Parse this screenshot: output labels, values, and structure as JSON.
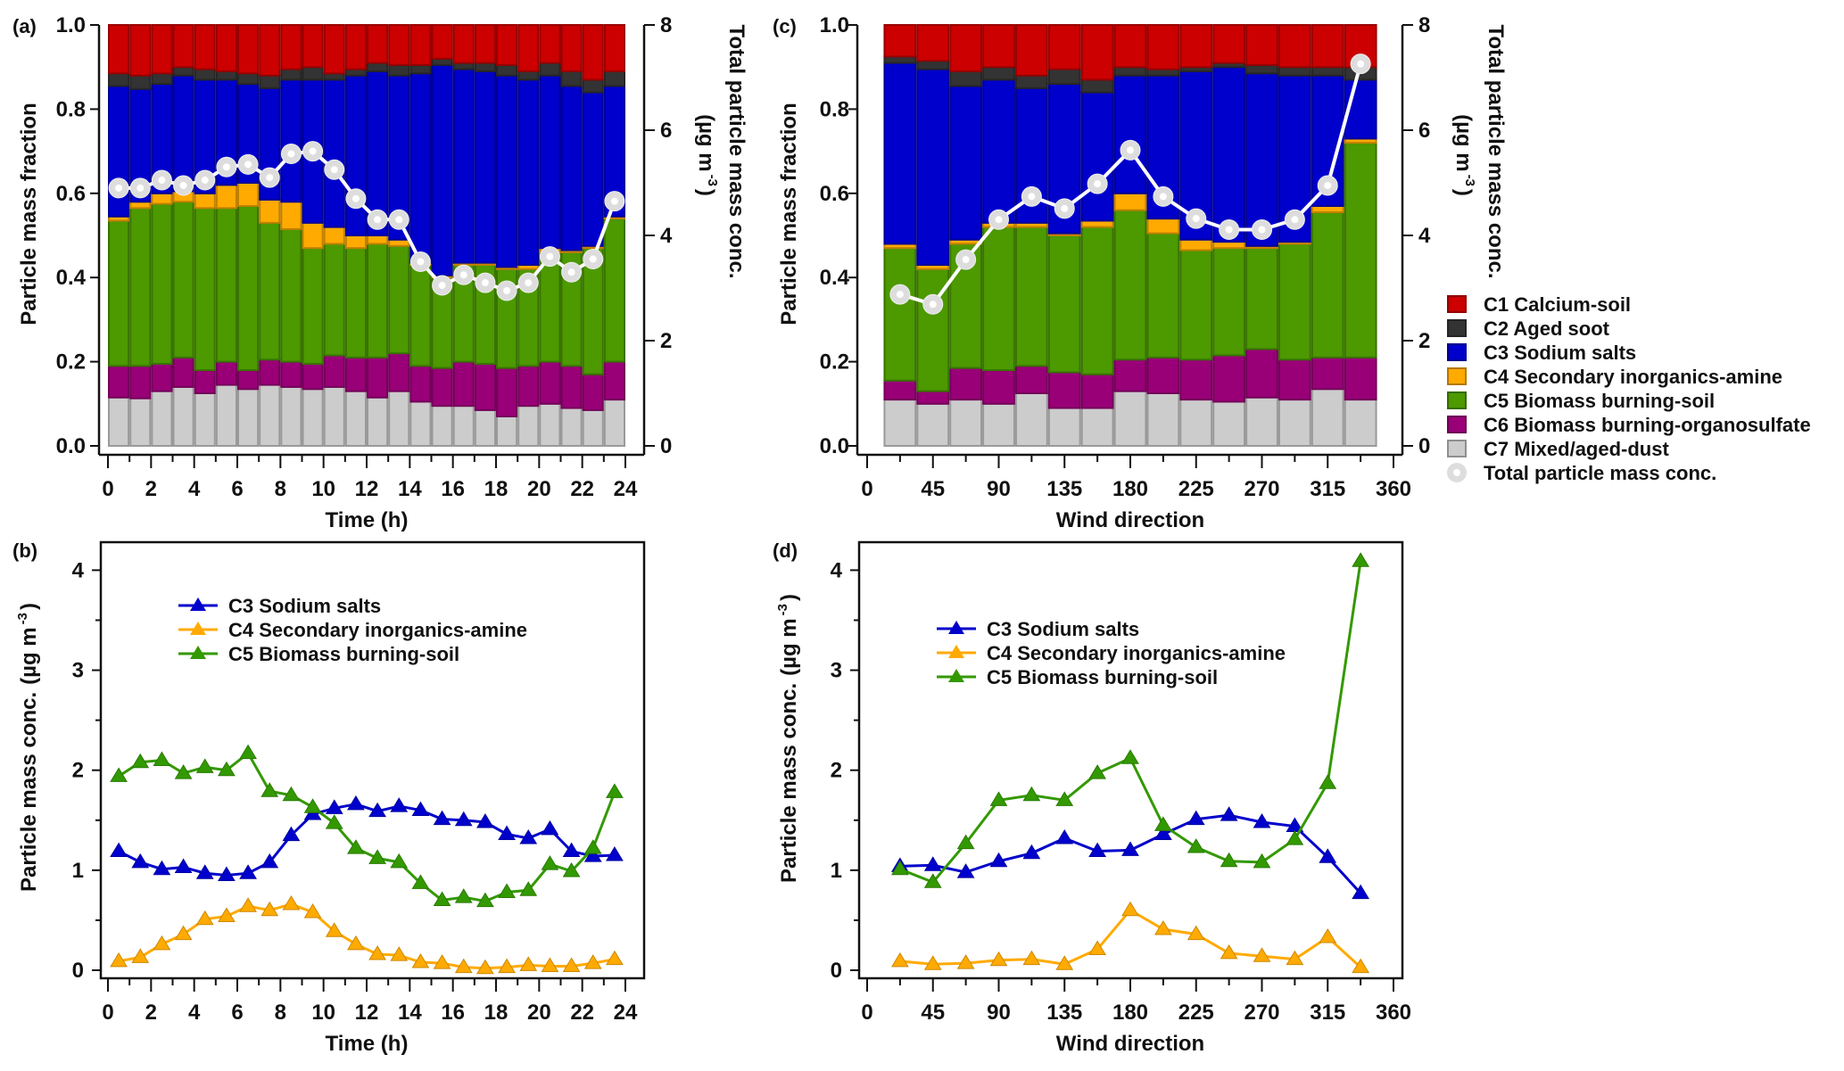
{
  "chart_data": [
    {
      "panel_label": "(a)",
      "type": "bar",
      "stacked": true,
      "xlabel": "Time (h)",
      "ylabel": "Particle mass fraction",
      "y2label": "Total particle mass conc.",
      "y2unit": {
        "base": "(µg m",
        "exp": "-3",
        "close": ")"
      },
      "xlim": [
        0,
        24
      ],
      "ylim": [
        0,
        1
      ],
      "y2lim": [
        0,
        8
      ],
      "xticks": [
        "0",
        "2",
        "4",
        "6",
        "8",
        "10",
        "12",
        "14",
        "16",
        "18",
        "20",
        "22",
        "24"
      ],
      "xtick_step": 2,
      "xminor_step": 1,
      "yticks": [
        "0.0",
        "0.2",
        "0.4",
        "0.6",
        "0.8",
        "1.0"
      ],
      "y2ticks": [
        "0",
        "2",
        "4",
        "6",
        "8"
      ],
      "x": [
        0.5,
        1.5,
        2.5,
        3.5,
        4.5,
        5.5,
        6.5,
        7.5,
        8.5,
        9.5,
        10.5,
        11.5,
        12.5,
        13.5,
        14.5,
        15.5,
        16.5,
        17.5,
        18.5,
        19.5,
        20.5,
        21.5,
        22.5,
        23.5
      ],
      "series": [
        {
          "name": "C1 Calcium-soil",
          "color": "#cc0000",
          "values": [
            0.115,
            0.12,
            0.115,
            0.1,
            0.105,
            0.11,
            0.115,
            0.12,
            0.105,
            0.1,
            0.115,
            0.105,
            0.09,
            0.095,
            0.095,
            0.08,
            0.09,
            0.09,
            0.095,
            0.11,
            0.09,
            0.11,
            0.13,
            0.11
          ]
        },
        {
          "name": "C2 Aged soot",
          "color": "#333333",
          "values": [
            0.03,
            0.032,
            0.025,
            0.02,
            0.025,
            0.02,
            0.025,
            0.03,
            0.025,
            0.03,
            0.015,
            0.015,
            0.02,
            0.025,
            0.02,
            0.015,
            0.015,
            0.02,
            0.025,
            0.02,
            0.03,
            0.035,
            0.03,
            0.035
          ]
        },
        {
          "name": "C3 Sodium salts",
          "color": "#0000cc",
          "values": [
            0.31,
            0.268,
            0.26,
            0.275,
            0.27,
            0.25,
            0.235,
            0.265,
            0.29,
            0.34,
            0.35,
            0.38,
            0.39,
            0.39,
            0.45,
            0.5,
            0.46,
            0.455,
            0.455,
            0.44,
            0.41,
            0.39,
            0.365,
            0.31
          ]
        },
        {
          "name": "C4 Secondary inorganics-amine",
          "color": "#ffaa00",
          "values": [
            0.01,
            0.015,
            0.025,
            0.025,
            0.035,
            0.055,
            0.055,
            0.055,
            0.065,
            0.06,
            0.04,
            0.03,
            0.02,
            0.015,
            0.005,
            0.005,
            0.005,
            0.005,
            0.005,
            0.01,
            0.01,
            0.005,
            0.005,
            0.005
          ]
        },
        {
          "name": "C5 Biomass burning-soil",
          "color": "#4c9900",
          "values": [
            0.345,
            0.375,
            0.38,
            0.37,
            0.385,
            0.365,
            0.39,
            0.325,
            0.315,
            0.275,
            0.265,
            0.26,
            0.27,
            0.255,
            0.24,
            0.215,
            0.23,
            0.235,
            0.235,
            0.23,
            0.26,
            0.27,
            0.3,
            0.34
          ]
        },
        {
          "name": "C6 Biomass burning-organosulfate",
          "color": "#990077",
          "values": [
            0.075,
            0.077,
            0.065,
            0.07,
            0.055,
            0.055,
            0.045,
            0.06,
            0.06,
            0.06,
            0.075,
            0.08,
            0.095,
            0.09,
            0.085,
            0.09,
            0.105,
            0.11,
            0.115,
            0.095,
            0.1,
            0.1,
            0.085,
            0.09
          ]
        },
        {
          "name": "C7 Mixed/aged-dust",
          "color": "#cccccc",
          "values": [
            0.115,
            0.113,
            0.13,
            0.14,
            0.125,
            0.145,
            0.135,
            0.145,
            0.14,
            0.135,
            0.14,
            0.13,
            0.115,
            0.13,
            0.105,
            0.095,
            0.095,
            0.085,
            0.07,
            0.095,
            0.1,
            0.09,
            0.085,
            0.11
          ]
        }
      ],
      "line_series": {
        "name": "Total particle mass conc.",
        "axis": "right",
        "values": [
          4.9,
          4.9,
          5.05,
          4.95,
          5.05,
          5.3,
          5.35,
          5.1,
          5.55,
          5.6,
          5.25,
          4.7,
          4.3,
          4.3,
          3.5,
          3.05,
          3.25,
          3.1,
          2.95,
          3.1,
          3.6,
          3.3,
          3.55,
          4.65
        ]
      }
    },
    {
      "panel_label": "(b)",
      "type": "line",
      "xlabel": "Time (h)",
      "ylabel": "Particle mass conc.",
      "yunit": {
        "base": "(µg m",
        "exp": "-3",
        "close": ")"
      },
      "xlim": [
        0,
        24
      ],
      "ylim": [
        0,
        4.28
      ],
      "xticks": [
        "0",
        "2",
        "4",
        "6",
        "8",
        "10",
        "12",
        "14",
        "16",
        "18",
        "20",
        "22",
        "24"
      ],
      "xtick_step": 2,
      "xminor_step": 1,
      "yticks": [
        "0",
        "1",
        "2",
        "3",
        "4"
      ],
      "legend": "upper-center",
      "x": [
        0.5,
        1.5,
        2.5,
        3.5,
        4.5,
        5.5,
        6.5,
        7.5,
        8.5,
        9.5,
        10.5,
        11.5,
        12.5,
        13.5,
        14.5,
        15.5,
        16.5,
        17.5,
        18.5,
        19.5,
        20.5,
        21.5,
        22.5,
        23.5
      ],
      "series": [
        {
          "name": "C3 Sodium salts",
          "color": "#0000cc",
          "values": [
            1.19,
            1.08,
            1.01,
            1.03,
            0.97,
            0.95,
            0.97,
            1.08,
            1.35,
            1.56,
            1.62,
            1.66,
            1.59,
            1.64,
            1.6,
            1.51,
            1.5,
            1.48,
            1.36,
            1.32,
            1.41,
            1.19,
            1.14,
            1.15
          ]
        },
        {
          "name": "C4 Secondary inorganics-amine",
          "color": "#ffaa00",
          "values": [
            0.09,
            0.13,
            0.26,
            0.36,
            0.51,
            0.54,
            0.64,
            0.6,
            0.66,
            0.58,
            0.39,
            0.26,
            0.16,
            0.15,
            0.08,
            0.07,
            0.03,
            0.02,
            0.03,
            0.05,
            0.04,
            0.04,
            0.07,
            0.11
          ]
        },
        {
          "name": "C5 Biomass burning-soil",
          "color": "#339900",
          "values": [
            1.94,
            2.08,
            2.1,
            1.97,
            2.03,
            2.0,
            2.17,
            1.79,
            1.75,
            1.63,
            1.47,
            1.22,
            1.12,
            1.08,
            0.87,
            0.7,
            0.73,
            0.69,
            0.78,
            0.8,
            1.06,
            0.99,
            1.22,
            1.78
          ]
        }
      ]
    },
    {
      "panel_label": "(c)",
      "type": "bar",
      "stacked": true,
      "xlabel": "Wind direction",
      "ylabel": "Particle mass fraction",
      "y2label": "Total particle mass conc.",
      "y2unit": {
        "base": "(µg m",
        "exp": "-3",
        "close": ")"
      },
      "xlim": [
        0,
        360
      ],
      "ylim": [
        0,
        1
      ],
      "y2lim": [
        0,
        8
      ],
      "xticks": [
        "0",
        "45",
        "90",
        "135",
        "180",
        "225",
        "270",
        "315",
        "360"
      ],
      "xtick_step": 45,
      "xminor_step": 22.5,
      "yticks": [
        "0.0",
        "0.2",
        "0.4",
        "0.6",
        "0.8",
        "1.0"
      ],
      "y2ticks": [
        "0",
        "2",
        "4",
        "6",
        "8"
      ],
      "legend": "right",
      "x": [
        22.5,
        45,
        67.5,
        90,
        112.5,
        135,
        157.5,
        180,
        202.5,
        225,
        247.5,
        270,
        292.5,
        315,
        337.5
      ],
      "series": [
        {
          "name": "C1 Calcium-soil",
          "color": "#cc0000",
          "values": [
            0.075,
            0.085,
            0.11,
            0.1,
            0.12,
            0.105,
            0.13,
            0.1,
            0.105,
            0.1,
            0.09,
            0.095,
            0.1,
            0.1,
            0.1
          ]
        },
        {
          "name": "C2 Aged soot",
          "color": "#333333",
          "values": [
            0.015,
            0.02,
            0.035,
            0.03,
            0.03,
            0.035,
            0.03,
            0.02,
            0.015,
            0.01,
            0.01,
            0.02,
            0.02,
            0.02,
            0.03
          ]
        },
        {
          "name": "C3 Sodium salts",
          "color": "#0000cc",
          "values": [
            0.43,
            0.465,
            0.365,
            0.34,
            0.32,
            0.355,
            0.305,
            0.28,
            0.34,
            0.4,
            0.415,
            0.41,
            0.395,
            0.31,
            0.14
          ]
        },
        {
          "name": "C4 Secondary inorganics-amine",
          "color": "#ffaa00",
          "values": [
            0.01,
            0.01,
            0.01,
            0.01,
            0.01,
            0.005,
            0.015,
            0.04,
            0.035,
            0.025,
            0.015,
            0.005,
            0.005,
            0.015,
            0.01
          ]
        },
        {
          "name": "C5 Biomass burning-soil",
          "color": "#4c9900",
          "values": [
            0.315,
            0.29,
            0.295,
            0.34,
            0.33,
            0.325,
            0.35,
            0.355,
            0.295,
            0.26,
            0.255,
            0.24,
            0.275,
            0.345,
            0.51
          ]
        },
        {
          "name": "C6 Biomass burning-organosulfate",
          "color": "#990077",
          "values": [
            0.045,
            0.03,
            0.075,
            0.08,
            0.065,
            0.085,
            0.08,
            0.075,
            0.085,
            0.095,
            0.11,
            0.115,
            0.095,
            0.075,
            0.1
          ]
        },
        {
          "name": "C7 Mixed/aged-dust",
          "color": "#cccccc",
          "values": [
            0.11,
            0.1,
            0.11,
            0.1,
            0.125,
            0.09,
            0.09,
            0.13,
            0.125,
            0.11,
            0.105,
            0.115,
            0.11,
            0.135,
            0.11
          ]
        }
      ],
      "line_series": {
        "name": "Total particle mass conc.",
        "axis": "right",
        "values": [
          2.88,
          2.69,
          3.54,
          4.3,
          4.74,
          4.51,
          4.98,
          5.62,
          4.74,
          4.32,
          4.11,
          4.11,
          4.3,
          4.95,
          7.26
        ]
      }
    },
    {
      "panel_label": "(d)",
      "type": "line",
      "xlabel": "Wind direction",
      "ylabel": "Particle mass conc.",
      "yunit": {
        "base": "(µg m",
        "exp": "-3",
        "close": ")"
      },
      "xlim": [
        0,
        360
      ],
      "ylim": [
        0,
        4.28
      ],
      "xticks": [
        "0",
        "45",
        "90",
        "135",
        "180",
        "225",
        "270",
        "315",
        "360"
      ],
      "xtick_step": 45,
      "xminor_step": 22.5,
      "yticks": [
        "0",
        "1",
        "2",
        "3",
        "4"
      ],
      "legend": "upper-center",
      "x": [
        22.5,
        45,
        67.5,
        90,
        112.5,
        135,
        157.5,
        180,
        202.5,
        225,
        247.5,
        270,
        292.5,
        315,
        337.5
      ],
      "series": [
        {
          "name": "C3 Sodium salts",
          "color": "#0000cc",
          "values": [
            1.04,
            1.05,
            0.98,
            1.09,
            1.17,
            1.32,
            1.19,
            1.2,
            1.36,
            1.51,
            1.55,
            1.48,
            1.44,
            1.13,
            0.77
          ]
        },
        {
          "name": "C4 Secondary inorganics-amine",
          "color": "#ffaa00",
          "values": [
            0.09,
            0.06,
            0.07,
            0.1,
            0.11,
            0.06,
            0.21,
            0.6,
            0.41,
            0.36,
            0.17,
            0.14,
            0.11,
            0.33,
            0.03
          ]
        },
        {
          "name": "C5 Biomass burning-soil",
          "color": "#339900",
          "values": [
            1.01,
            0.88,
            1.27,
            1.7,
            1.75,
            1.7,
            1.97,
            2.12,
            1.45,
            1.23,
            1.09,
            1.08,
            1.31,
            1.87,
            4.09
          ]
        }
      ]
    }
  ]
}
